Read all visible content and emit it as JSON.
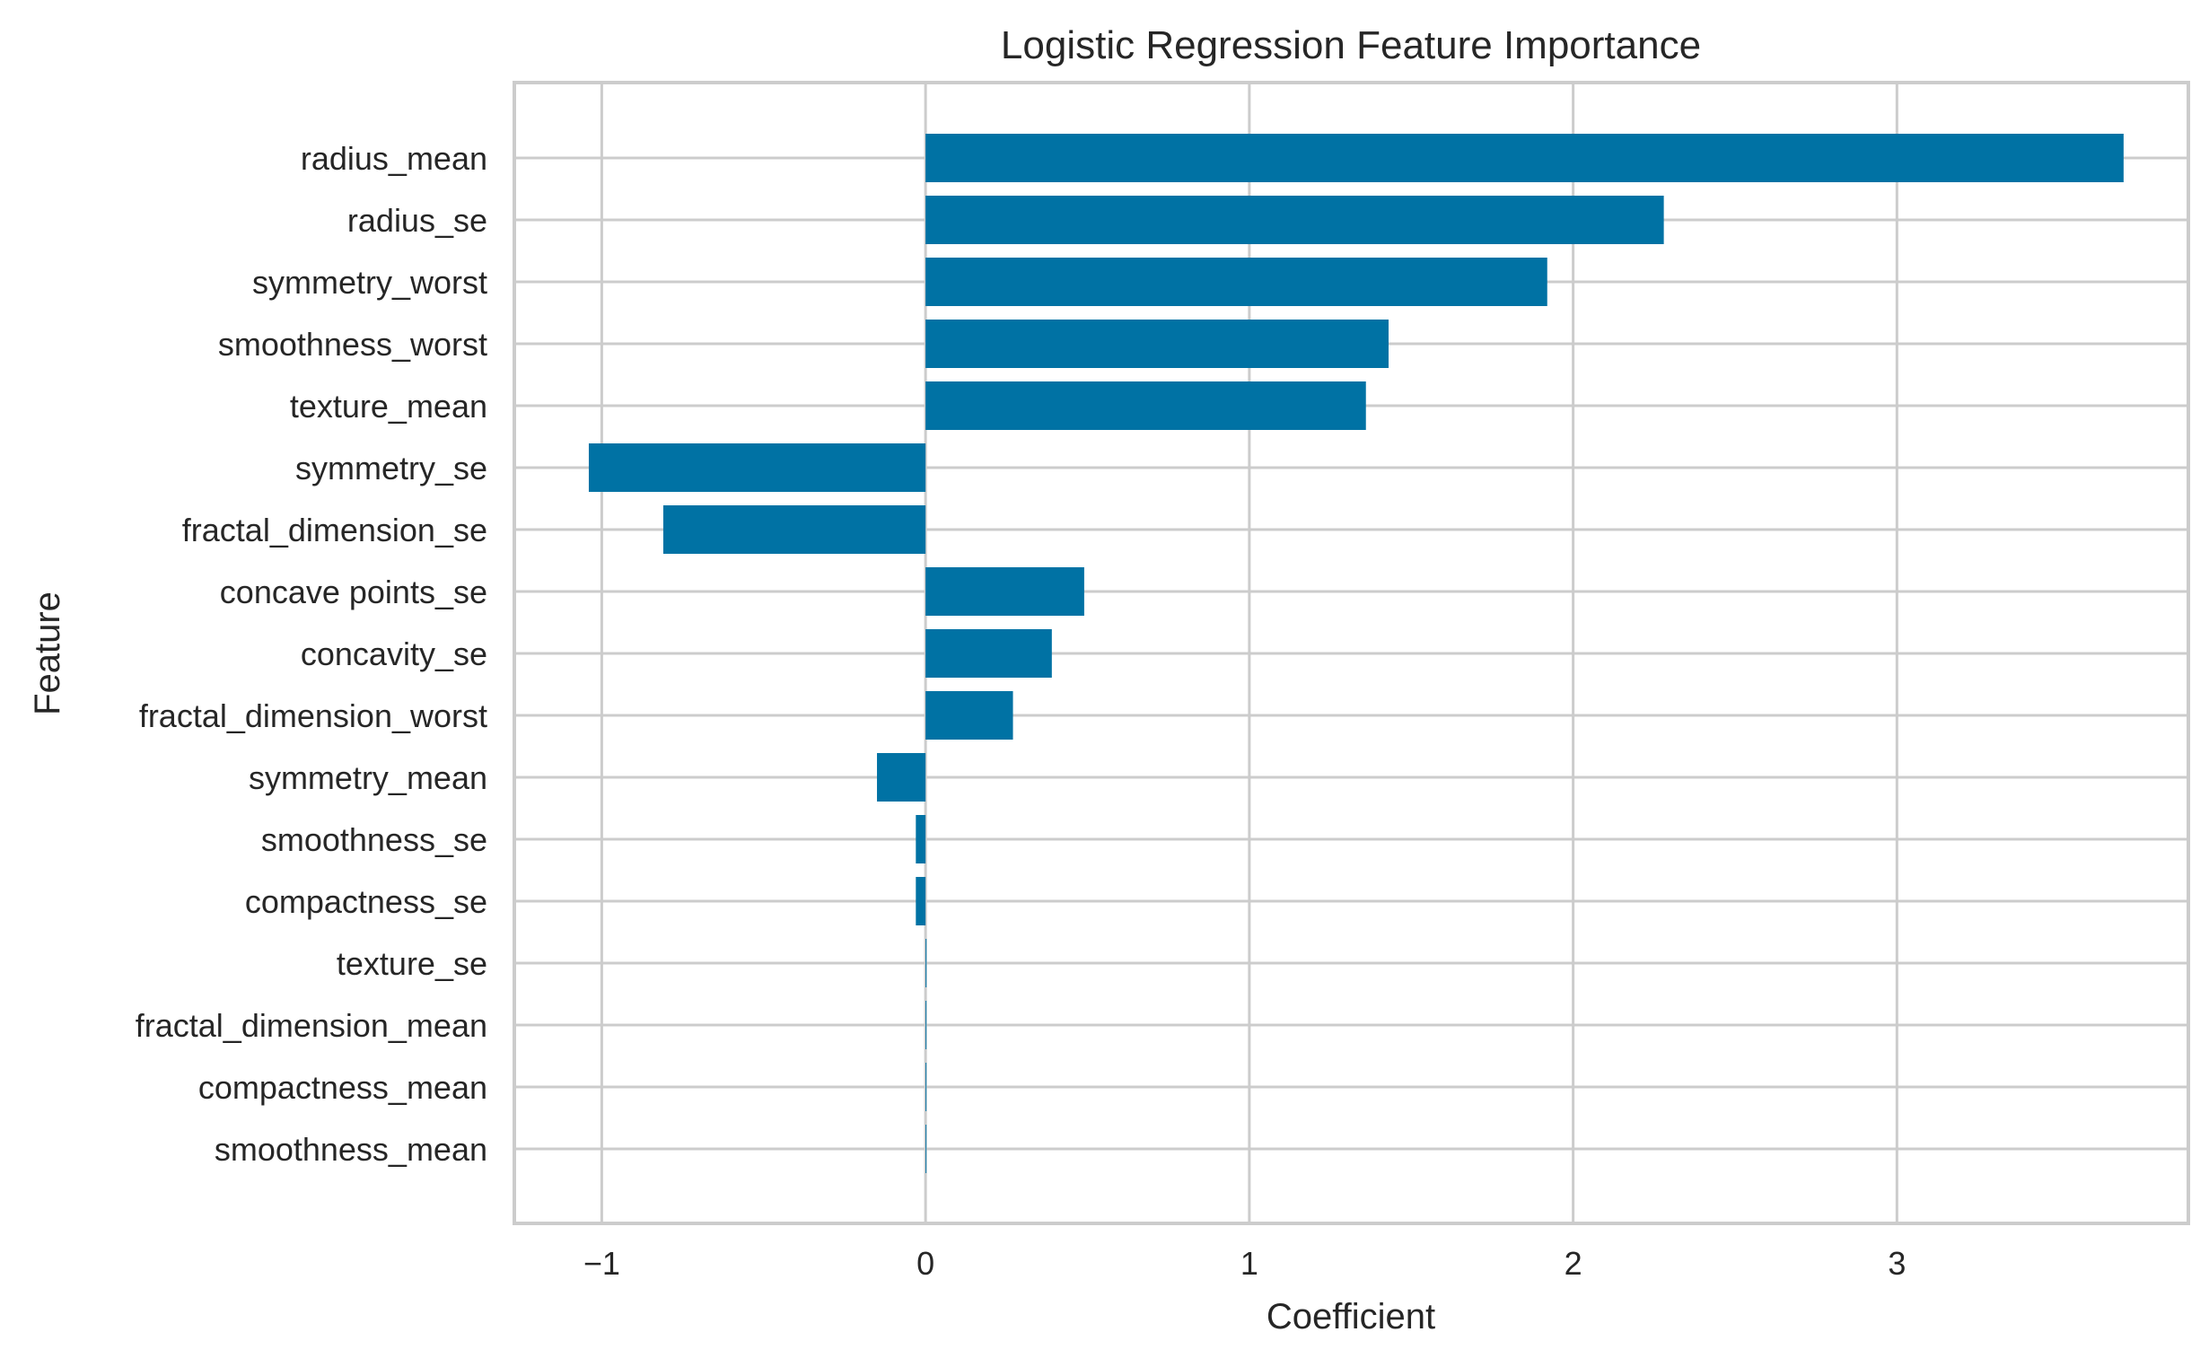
{
  "chart_data": {
    "type": "bar",
    "orientation": "horizontal",
    "title": "Logistic Regression Feature Importance",
    "xlabel": "Coefficient",
    "ylabel": "Feature",
    "xlim": [
      -1.27,
      3.9
    ],
    "xticks": [
      -1,
      0,
      1,
      2,
      3
    ],
    "xtick_labels": [
      "−1",
      "0",
      "1",
      "2",
      "3"
    ],
    "grid": true,
    "bar_color": "#0072a4",
    "grid_color": "#cccccc",
    "categories": [
      "radius_mean",
      "radius_se",
      "symmetry_worst",
      "smoothness_worst",
      "texture_mean",
      "symmetry_se",
      "fractal_dimension_se",
      "concave points_se",
      "concavity_se",
      "fractal_dimension_worst",
      "symmetry_mean",
      "smoothness_se",
      "compactness_se",
      "texture_se",
      "fractal_dimension_mean",
      "compactness_mean",
      "smoothness_mean"
    ],
    "values": [
      3.7,
      2.28,
      1.92,
      1.43,
      1.36,
      -1.04,
      -0.81,
      0.49,
      0.39,
      0.27,
      -0.15,
      -0.03,
      -0.03,
      0.003,
      0.002,
      0.002,
      0.001
    ]
  }
}
